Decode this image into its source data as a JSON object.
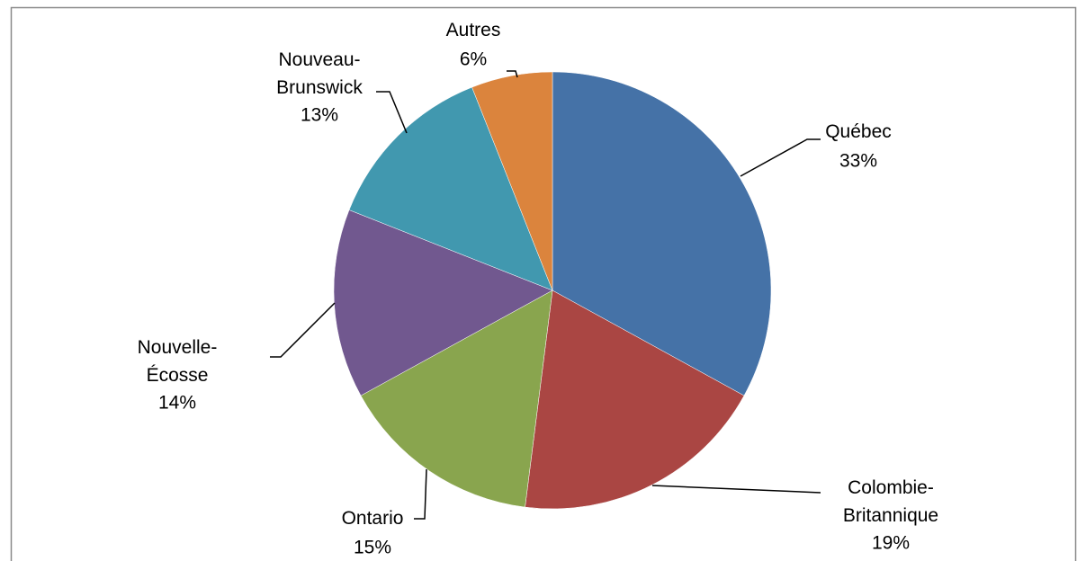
{
  "chart_data": {
    "type": "pie",
    "categories": [
      "Québec",
      "Colombie-Britannique",
      "Ontario",
      "Nouvelle-Écosse",
      "Nouveau-Brunswick",
      "Autres"
    ],
    "values": [
      33,
      19,
      15,
      14,
      13,
      6
    ],
    "value_labels": [
      "33%",
      "19%",
      "15%",
      "14%",
      "13%",
      "6%"
    ],
    "colors": [
      "#4572a7",
      "#aa4643",
      "#89a54e",
      "#71588f",
      "#4198af",
      "#db843d"
    ]
  }
}
